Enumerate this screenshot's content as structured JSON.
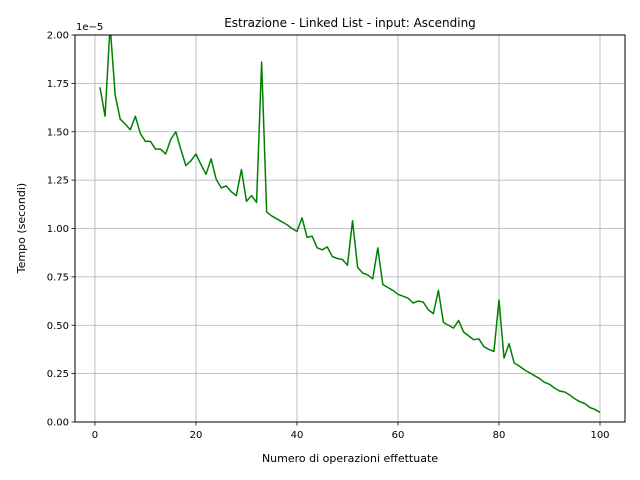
{
  "chart_data": {
    "type": "line",
    "title": "Estrazione - Linked List - input: Ascending",
    "xlabel": "Numero di operazioni effettuate",
    "ylabel": "Tempo (secondi)",
    "y_offset_label": "1e−5",
    "xlim": [
      -3.95,
      104.95
    ],
    "ylim": [
      0,
      2e-05
    ],
    "x_ticks": [
      0,
      20,
      40,
      60,
      80,
      100
    ],
    "x_tick_labels": [
      "0",
      "20",
      "40",
      "60",
      "80",
      "100"
    ],
    "y_ticks": [
      0,
      2.5e-06,
      5e-06,
      7.5e-06,
      1e-05,
      1.25e-05,
      1.5e-05,
      1.75e-05,
      2e-05
    ],
    "y_tick_labels": [
      "0.00",
      "0.25",
      "0.50",
      "0.75",
      "1.00",
      "1.25",
      "1.50",
      "1.75",
      "2.00"
    ],
    "grid": true,
    "line_color": "#008000",
    "series": [
      {
        "x": [
          1,
          2,
          3,
          4,
          5,
          6,
          7,
          8,
          9,
          10,
          11,
          12,
          13,
          14,
          15,
          16,
          17,
          18,
          19,
          20,
          21,
          22,
          23,
          24,
          25,
          26,
          27,
          28,
          29,
          30,
          31,
          32,
          33,
          34,
          35,
          36,
          37,
          38,
          39,
          40,
          41,
          42,
          43,
          44,
          45,
          46,
          47,
          48,
          49,
          50,
          51,
          52,
          53,
          54,
          55,
          56,
          57,
          58,
          59,
          60,
          61,
          62,
          63,
          64,
          65,
          66,
          67,
          68,
          69,
          70,
          71,
          72,
          73,
          74,
          75,
          76,
          77,
          78,
          79,
          80,
          81,
          82,
          83,
          84,
          85,
          86,
          87,
          88,
          89,
          90,
          91,
          92,
          93,
          94,
          95,
          96,
          97,
          98,
          99,
          100
        ],
        "values": [
          1.73e-05,
          1.58e-05,
          2.05e-05,
          1.69e-05,
          1.565e-05,
          1.54e-05,
          1.51e-05,
          1.58e-05,
          1.49e-05,
          1.45e-05,
          1.45e-05,
          1.41e-05,
          1.41e-05,
          1.385e-05,
          1.46e-05,
          1.5e-05,
          1.41e-05,
          1.325e-05,
          1.35e-05,
          1.385e-05,
          1.33e-05,
          1.28e-05,
          1.36e-05,
          1.255e-05,
          1.21e-05,
          1.22e-05,
          1.19e-05,
          1.17e-05,
          1.305e-05,
          1.14e-05,
          1.17e-05,
          1.135e-05,
          1.86e-05,
          1.085e-05,
          1.065e-05,
          1.05e-05,
          1.035e-05,
          1.02e-05,
          1e-05,
          9.85e-06,
          1.055e-05,
          9.55e-06,
          9.6e-06,
          9e-06,
          8.9e-06,
          9.05e-06,
          8.55e-06,
          8.45e-06,
          8.4e-06,
          8.1e-06,
          1.04e-05,
          8e-06,
          7.7e-06,
          7.6e-06,
          7.4e-06,
          9e-06,
          7.1e-06,
          6.95e-06,
          6.8e-06,
          6.6e-06,
          6.5e-06,
          6.4e-06,
          6.15e-06,
          6.25e-06,
          6.2e-06,
          5.8e-06,
          5.6e-06,
          6.8e-06,
          5.15e-06,
          5e-06,
          4.85e-06,
          5.25e-06,
          4.65e-06,
          4.45e-06,
          4.25e-06,
          4.3e-06,
          3.9e-06,
          3.75e-06,
          3.65e-06,
          6.3e-06,
          3.3e-06,
          4.05e-06,
          3.05e-06,
          2.9e-06,
          2.7e-06,
          2.55e-06,
          2.4e-06,
          2.25e-06,
          2.05e-06,
          1.95e-06,
          1.75e-06,
          1.6e-06,
          1.55e-06,
          1.4e-06,
          1.2e-06,
          1.05e-06,
          9.5e-07,
          7.5e-07,
          6.5e-07,
          5e-07
        ]
      }
    ]
  }
}
